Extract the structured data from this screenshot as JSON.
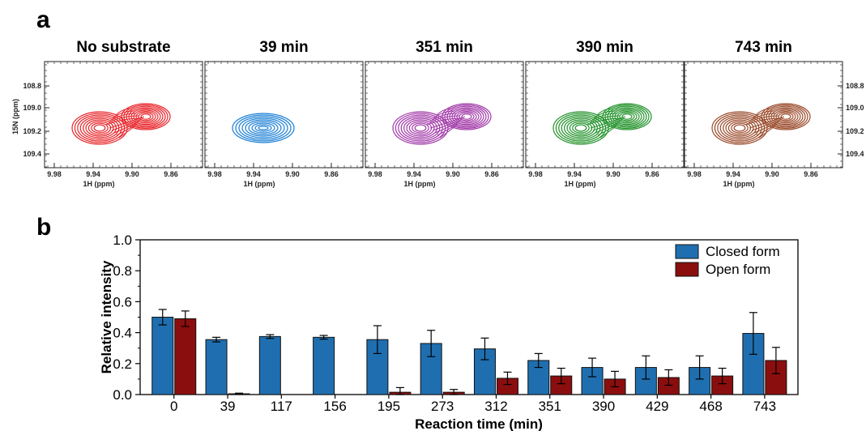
{
  "panel_a": {
    "label": "a",
    "x_axis_label": "1H (ppm)",
    "y_axis_label": "15N (ppm)",
    "x_ticks": [
      "9.98",
      "9.94",
      "9.90",
      "9.86"
    ],
    "y_ticks": [
      "108.8",
      "109.0",
      "109.2",
      "109.4"
    ],
    "spectra": [
      {
        "title": "No substrate",
        "color": "#e8262b",
        "shape": "double"
      },
      {
        "title": "39 min",
        "color": "#1a7fd4",
        "shape": "single"
      },
      {
        "title": "351 min",
        "color": "#a23aa8",
        "shape": "double"
      },
      {
        "title": "390 min",
        "color": "#22922a",
        "shape": "double"
      },
      {
        "title": "743 min",
        "color": "#9a4a2a",
        "shape": "double"
      }
    ]
  },
  "panel_b": {
    "label": "b"
  },
  "colors": {
    "closed": "#1f6fb0",
    "open": "#8b0e0e"
  },
  "chart_data": {
    "type": "bar",
    "categories": [
      "0",
      "39",
      "117",
      "156",
      "195",
      "273",
      "312",
      "351",
      "390",
      "429",
      "468",
      "743"
    ],
    "series": [
      {
        "name": "Closed form",
        "values": [
          0.5,
          0.355,
          0.375,
          0.37,
          0.355,
          0.33,
          0.295,
          0.22,
          0.175,
          0.175,
          0.175,
          0.395
        ],
        "errors": [
          0.05,
          0.015,
          0.012,
          0.012,
          0.09,
          0.085,
          0.07,
          0.045,
          0.06,
          0.075,
          0.075,
          0.135
        ]
      },
      {
        "name": "Open form",
        "values": [
          0.49,
          0.005,
          0.0,
          0.0,
          0.015,
          0.015,
          0.105,
          0.12,
          0.1,
          0.11,
          0.12,
          0.22
        ],
        "errors": [
          0.05,
          0.004,
          0.0,
          0.0,
          0.03,
          0.018,
          0.04,
          0.05,
          0.05,
          0.05,
          0.05,
          0.085
        ]
      }
    ],
    "xlabel": "Reaction time (min)",
    "ylabel": "Relative intensity",
    "ylim": [
      0,
      1.0
    ],
    "yticks": [
      "0.0",
      "0.2",
      "0.4",
      "0.6",
      "0.8",
      "1.0"
    ],
    "legend": "top-right",
    "grid": false
  }
}
